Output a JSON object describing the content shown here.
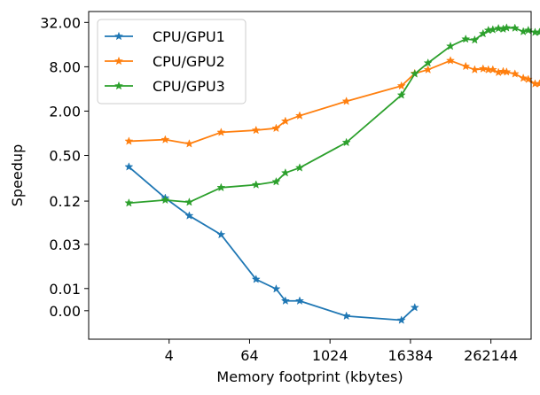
{
  "chart_data": {
    "type": "line",
    "xlabel": "Memory footprint (kbytes)",
    "ylabel": "Speedup",
    "x_scale": "log2",
    "y_scale": "log2",
    "xlim": [
      0.25,
      1048576
    ],
    "ylim": [
      0.0016,
      45
    ],
    "x_ticks": [
      4,
      64,
      1024,
      16384,
      262144
    ],
    "x_tick_labels": [
      "4",
      "64",
      "1024",
      "16384",
      "262144"
    ],
    "y_ticks": [
      0.0039,
      0.0078,
      0.031,
      0.12,
      0.5,
      2.0,
      8.0,
      32.0
    ],
    "y_tick_labels": [
      "0.00",
      "0.01",
      "0.03",
      "0.12",
      "0.50",
      "2.00",
      "8.00",
      "32.00"
    ],
    "grid": false,
    "legend_position": "top-left",
    "series": [
      {
        "name": "CPU/GPU1",
        "color": "#1f77b4",
        "marker": "star",
        "points": [
          [
            1,
            0.35
          ],
          [
            3.5,
            0.132
          ],
          [
            8,
            0.076
          ],
          [
            24,
            0.042
          ],
          [
            80,
            0.0104
          ],
          [
            160,
            0.0077
          ],
          [
            220,
            0.0053
          ],
          [
            360,
            0.0053
          ],
          [
            1800,
            0.0033
          ],
          [
            12000,
            0.0029
          ],
          [
            19000,
            0.0043
          ]
        ]
      },
      {
        "name": "CPU/GPU2",
        "color": "#ff7f0e",
        "marker": "star",
        "points": [
          [
            1,
            0.78
          ],
          [
            3.5,
            0.82
          ],
          [
            8,
            0.72
          ],
          [
            24,
            1.03
          ],
          [
            80,
            1.1
          ],
          [
            160,
            1.17
          ],
          [
            220,
            1.46
          ],
          [
            360,
            1.73
          ],
          [
            1800,
            2.72
          ],
          [
            12000,
            4.4
          ],
          [
            19000,
            6.5
          ],
          [
            30000,
            7.3
          ],
          [
            65000,
            9.7
          ],
          [
            110000,
            8.1
          ],
          [
            150000,
            7.3
          ],
          [
            200000,
            7.5
          ],
          [
            240000,
            7.3
          ],
          [
            280000,
            7.3
          ],
          [
            340000,
            6.7
          ],
          [
            400000,
            6.9
          ],
          [
            450000,
            6.8
          ],
          [
            600000,
            6.4
          ],
          [
            800000,
            5.6
          ],
          [
            950000,
            5.4
          ],
          [
            1200000,
            4.7
          ],
          [
            1400000,
            4.7
          ]
        ]
      },
      {
        "name": "CPU/GPU3",
        "color": "#2ca02c",
        "marker": "star",
        "points": [
          [
            1,
            0.113
          ],
          [
            3.5,
            0.124
          ],
          [
            8,
            0.116
          ],
          [
            24,
            0.183
          ],
          [
            80,
            0.2
          ],
          [
            160,
            0.22
          ],
          [
            220,
            0.29
          ],
          [
            360,
            0.34
          ],
          [
            1800,
            0.75
          ],
          [
            12000,
            3.3
          ],
          [
            19000,
            6.4
          ],
          [
            30000,
            9.0
          ],
          [
            65000,
            15.2
          ],
          [
            110000,
            19.0
          ],
          [
            150000,
            18.5
          ],
          [
            200000,
            22.5
          ],
          [
            240000,
            25.0
          ],
          [
            280000,
            25.5
          ],
          [
            340000,
            26.5
          ],
          [
            400000,
            26.0
          ],
          [
            450000,
            27.0
          ],
          [
            600000,
            26.8
          ],
          [
            800000,
            24.0
          ],
          [
            950000,
            25.0
          ],
          [
            1200000,
            23.5
          ],
          [
            1400000,
            23.5
          ]
        ]
      }
    ]
  }
}
